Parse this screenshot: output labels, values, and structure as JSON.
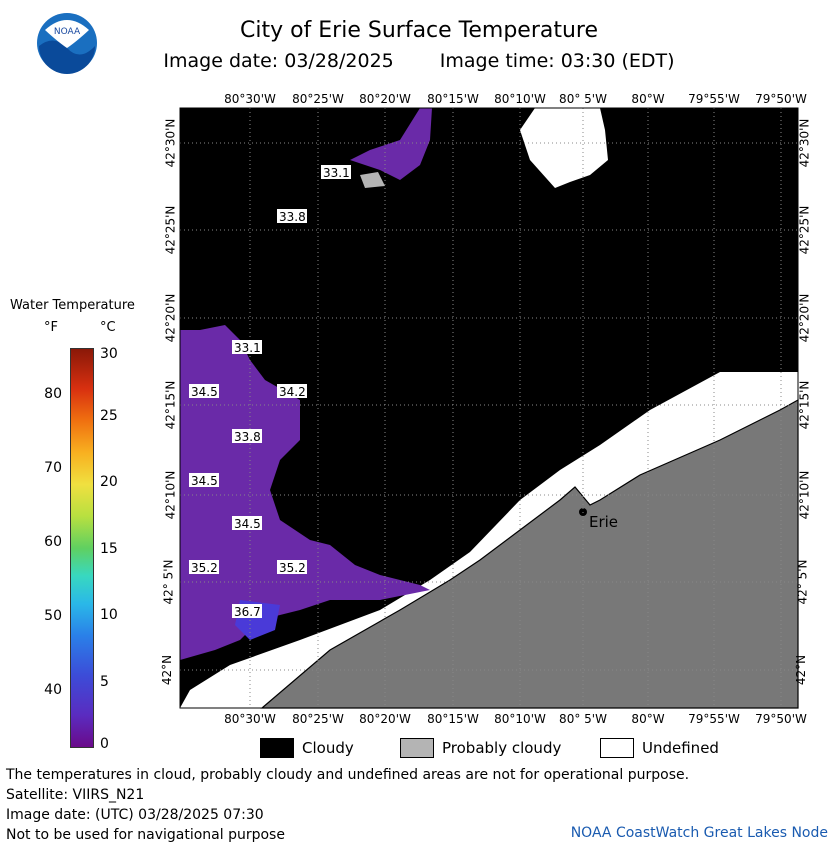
{
  "header": {
    "title": "City of Erie Surface Temperature",
    "image_date": "Image date: 03/28/2025",
    "image_time": "Image time: 03:30 (EDT)",
    "logo_text": "NOAA"
  },
  "map": {
    "lon_labels": [
      "80°30'W",
      "80°25'W",
      "80°20'W",
      "80°15'W",
      "80°10'W",
      "80° 5'W",
      "80°W",
      "79°55'W",
      "79°50'W"
    ],
    "lat_labels": [
      "42°30'N",
      "42°25'N",
      "42°20'N",
      "42°15'N",
      "42°10'N",
      "42° 5'N",
      "42°N"
    ],
    "city_label": "Erie",
    "temperature_labels": [
      "33.1",
      "33.8",
      "33.1",
      "34.5",
      "34.2",
      "33.8",
      "34.5",
      "34.5",
      "35.2",
      "35.2",
      "36.7"
    ],
    "colors": {
      "cloudy": "#000000",
      "probably_cloudy": "#b4b4b4",
      "undefined": "#ffffff",
      "land": "#787878",
      "water_cold": "#6a2aa8"
    }
  },
  "colorbar": {
    "title": "Water Temperature",
    "f_unit": "°F",
    "c_unit": "°C",
    "f_ticks": [
      "80",
      "70",
      "60",
      "50",
      "40"
    ],
    "c_ticks": [
      "30",
      "25",
      "20",
      "15",
      "10",
      "5",
      "0"
    ]
  },
  "legend": {
    "cloudy": "Cloudy",
    "probably_cloudy": "Probably cloudy",
    "undefined": "Undefined"
  },
  "footer": {
    "line1": "The temperatures in cloud, probably cloudy and undefined areas are not for operational purpose.",
    "line2": "Satellite: VIIRS_N21",
    "line3": "Image date: (UTC) 03/28/2025  07:30",
    "line4": "Not to be used for navigational purpose",
    "credit": "NOAA CoastWatch Great Lakes Node"
  }
}
